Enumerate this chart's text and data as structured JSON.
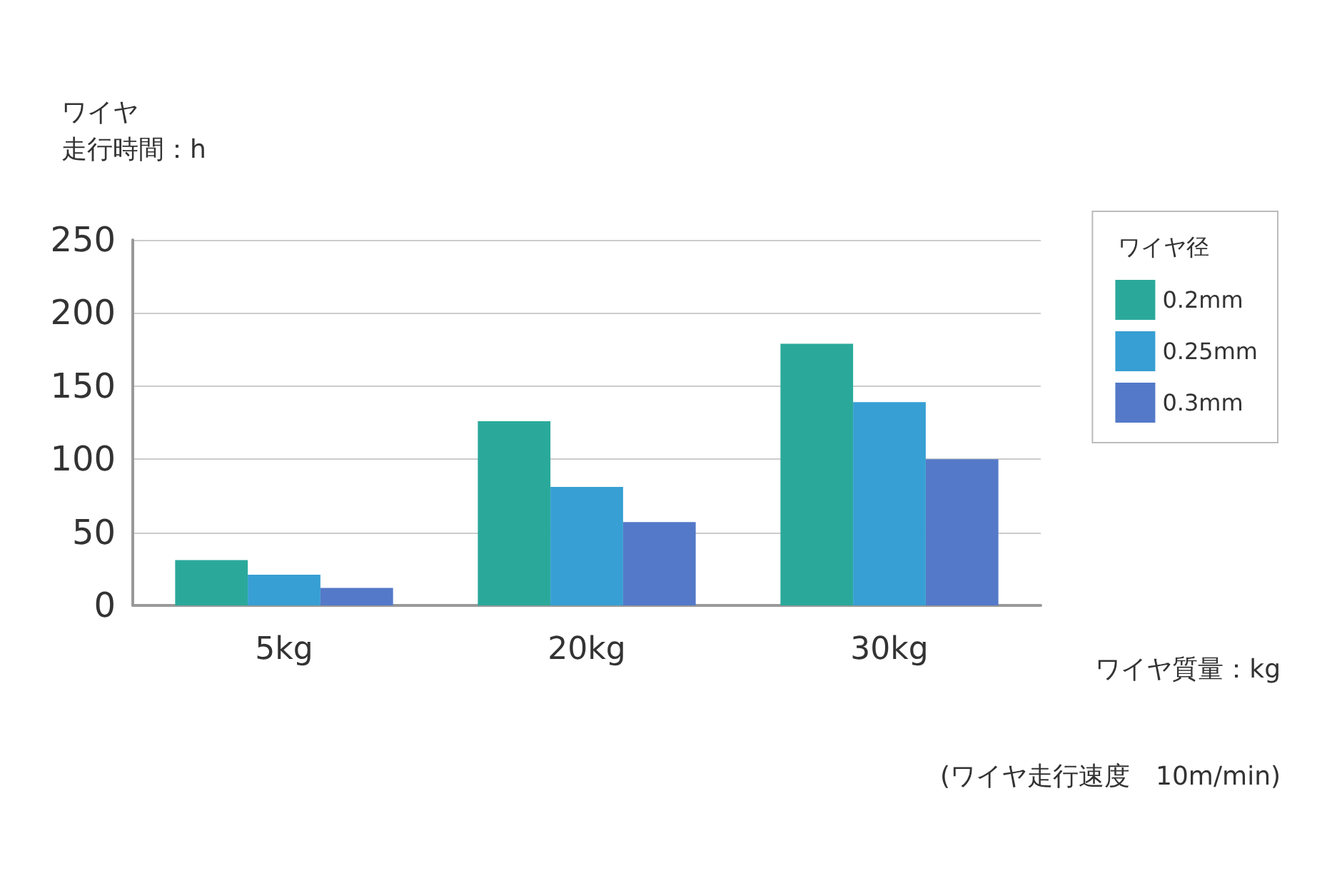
{
  "chart_data": {
    "type": "bar",
    "ylabel": "ワイヤ走行時間：h",
    "xlabel": "ワイヤ質量：kg",
    "legend_title": "ワイヤ径",
    "annotations": [
      "(ワイヤ走行速度　10m/min)"
    ],
    "categories": [
      "5kg",
      "20kg",
      "30kg"
    ],
    "series": [
      {
        "name": "0.2mm",
        "color": "#2aa99b",
        "values": [
          31,
          126,
          179
        ]
      },
      {
        "name": "0.25mm",
        "color": "#379fd3",
        "values": [
          21,
          81,
          139
        ]
      },
      {
        "name": "0.3mm",
        "color": "#5479c8",
        "values": [
          12,
          57,
          100
        ]
      }
    ],
    "ylim": [
      0,
      250
    ],
    "yticks": [
      0,
      50,
      100,
      150,
      200,
      250
    ],
    "grid": "y",
    "legend": "right"
  }
}
